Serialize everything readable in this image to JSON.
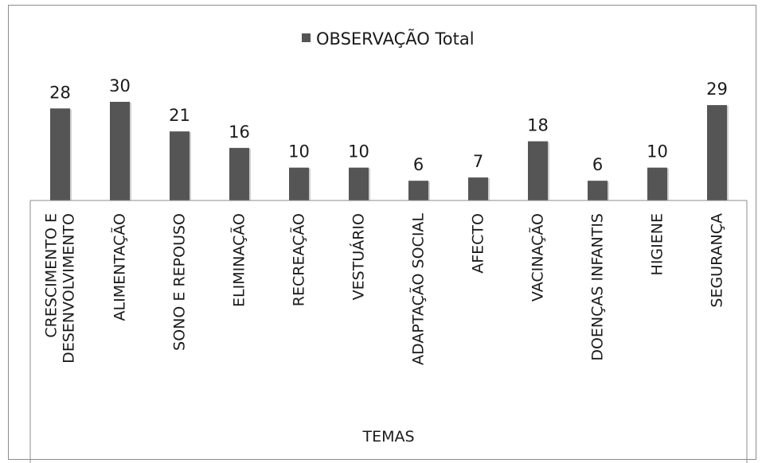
{
  "chart_data": {
    "type": "bar",
    "legend": {
      "label": "OBSERVAÇÃO Total",
      "position": "top"
    },
    "xlabel": "TEMAS",
    "ylabel": "",
    "categories": [
      "CRESCIMENTO E DESENVOLVIMENTO",
      "ALIMENTAÇÃO",
      "SONO E REPOUSO",
      "ELIMINAÇÃO",
      "RECREAÇÃO",
      "VESTUÁRIO",
      "ADAPTAÇÃO SOCIAL",
      "AFECTO",
      "VACINAÇÃO",
      "DOENÇAS INFANTIS",
      "HIGIENE",
      "SEGURANÇA"
    ],
    "series": [
      {
        "name": "OBSERVAÇÃO Total",
        "values": [
          28,
          30,
          21,
          16,
          10,
          10,
          6,
          7,
          18,
          6,
          10,
          29
        ]
      }
    ],
    "ylim": [
      0,
      30
    ],
    "grid": false,
    "bar_color": "#555555"
  }
}
